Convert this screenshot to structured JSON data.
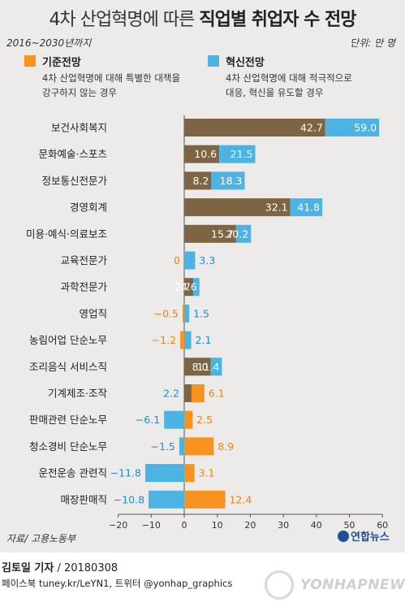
{
  "header": {
    "title_light": "4차 산업혁명에 따른",
    "title_bold": "직업별 취업자 수 전망",
    "period": "2016~2030년까지",
    "unit": "단위: 만 명"
  },
  "legend": {
    "base": {
      "label": "기준전망",
      "desc1": "4차 산업혁명에 대해 특별한 대책을",
      "desc2": "강구하지 않는 경우"
    },
    "innov": {
      "label": "혁신전망",
      "desc1": "4차 산업혁명에 대해 적극적으로",
      "desc2": "대응, 혁신을 유도할 경우"
    }
  },
  "colors": {
    "base_bar": "#f7931e",
    "base_text": "#e8860f",
    "innov_bar": "#4cb3e3",
    "innov_text": "#1f8fd0",
    "overlap_brown": "#7d6442",
    "background": "#ecebe9"
  },
  "chart_data": {
    "type": "bar",
    "orientation": "horizontal",
    "categories": [
      "보건사회복지",
      "문화예술·스포츠",
      "정보통신전문가",
      "경영회계",
      "미용·예식·의료보조",
      "교육전문가",
      "과학전문가",
      "영업직",
      "농림어업 단순노무",
      "조리음식 서비스직",
      "기계제조·조작",
      "판매관련 단순노무",
      "청소경비 단순노무",
      "운전운송 관련직",
      "매장판매직"
    ],
    "series": [
      {
        "name": "기준전망",
        "values": [
          42.7,
          10.6,
          8.2,
          32.1,
          15.7,
          0,
          2.7,
          -0.5,
          -1.2,
          8.0,
          6.1,
          2.5,
          8.9,
          3.1,
          12.4
        ]
      },
      {
        "name": "혁신전망",
        "values": [
          59.0,
          21.5,
          18.3,
          41.8,
          20.2,
          3.3,
          4.6,
          1.5,
          2.1,
          11.4,
          2.2,
          -6.1,
          -1.5,
          -11.8,
          -10.8
        ]
      }
    ],
    "data_labels": {
      "base": [
        "42.7",
        "10.6",
        "8.2",
        "32.1",
        "15.7",
        "0",
        "2.7",
        "−0.5",
        "−1.2",
        "8.0",
        "6.1",
        "2.5",
        "8.9",
        "3.1",
        "12.4"
      ],
      "innov": [
        "59.0",
        "21.5",
        "18.3",
        "41.8",
        "20.2",
        "3.3",
        "4.6",
        "1.5",
        "2.1",
        "11.4",
        "2.2",
        "−6.1",
        "−1.5",
        "−11.8",
        "−10.8"
      ]
    },
    "x_ticks": [
      "−20",
      "−10",
      "0",
      "10",
      "20",
      "30",
      "40",
      "50",
      "60"
    ],
    "xlim": [
      -20,
      60
    ]
  },
  "footer": {
    "source": "자료/ 고용노동부",
    "logo": "연합뉴스",
    "reporter_name": "김토일 기자",
    "reporter_date": " / 20180308",
    "social": "페이스북 tuney.kr/LeYN1, 트위터 @yonhap_graphics",
    "watermark": "YONHAPNEWS"
  }
}
